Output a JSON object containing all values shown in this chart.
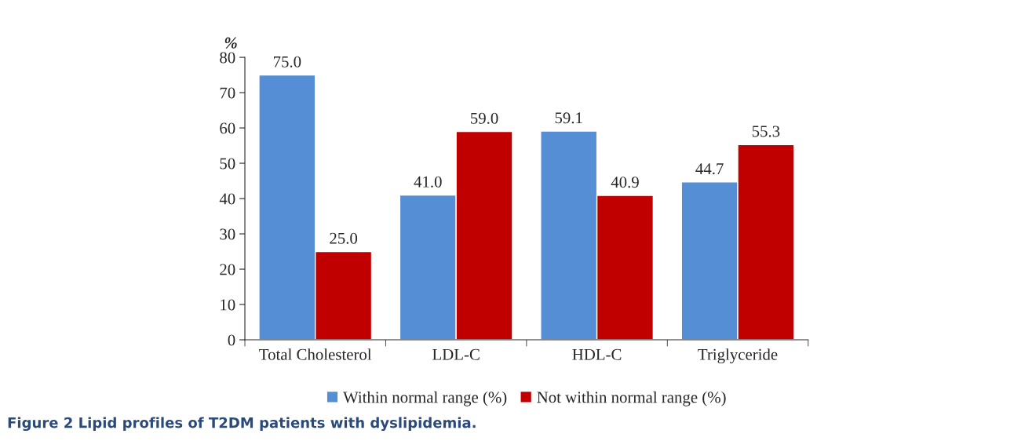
{
  "chart_data": {
    "type": "bar",
    "ylabel": "%",
    "categories": [
      "Total Cholesterol",
      "LDL-C",
      "HDL-C",
      "Triglyceride"
    ],
    "series": [
      {
        "name": "Within normal range (%)",
        "color": "#558ed5",
        "values": [
          75.0,
          41.0,
          59.1,
          44.7
        ],
        "value_labels": [
          "75.0",
          "41.0",
          "59.1",
          "44.7"
        ]
      },
      {
        "name": "Not within normal range (%)",
        "color": "#c00000",
        "values": [
          25.0,
          59.0,
          40.9,
          55.3
        ],
        "value_labels": [
          "25.0",
          "59.0",
          "40.9",
          "55.3"
        ]
      }
    ],
    "ylim": [
      0,
      80
    ],
    "yticks": [
      0,
      10,
      20,
      30,
      40,
      50,
      60,
      70,
      80
    ],
    "grid": false,
    "legend": "bottom",
    "annotations": [
      "Figure 2 Lipid profiles of T2DM patients with dyslipidemia."
    ]
  }
}
